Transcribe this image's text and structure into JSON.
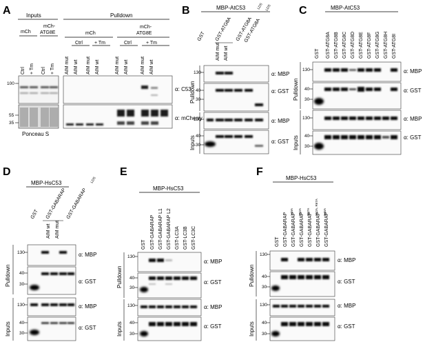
{
  "panels": [
    {
      "id": "A",
      "letter": "A",
      "headers": [
        {
          "text": "Inputs",
          "x": 50,
          "y": 25
        },
        {
          "text": "Pulldown",
          "x": 175,
          "y": 25
        }
      ],
      "groups": [
        {
          "text": "mCh",
          "x": 30,
          "y": 48
        },
        {
          "text": "mCh-",
          "x": 69,
          "y": 40
        },
        {
          "text": "ATG8E",
          "x": 69,
          "y": 49
        },
        {
          "text": "mCh",
          "x": 118,
          "y": 48
        },
        {
          "text": "mCh-",
          "x": 219,
          "y": 40
        },
        {
          "text": "ATG8E",
          "x": 219,
          "y": 49
        }
      ],
      "conditions": [
        "Ctrl",
        "+ Tm",
        "Ctrl",
        "+ Tm",
        "Ctrl",
        "+ Tm",
        "Ctrl",
        "+ Tm"
      ],
      "lanes": [
        "Ctrl",
        "+ Tm",
        "Ctrl",
        "+ Tm",
        "AIM mut",
        "AIM wt",
        "AIM mut",
        "AIM wt",
        "AIM mut",
        "AIM wt",
        "AIM mut",
        "AIM wt"
      ],
      "blots": [
        {
          "label": "α: C53",
          "mw": [
            "100"
          ]
        },
        {
          "label": "α: mCherry",
          "mw": [
            "55",
            "35"
          ]
        }
      ],
      "footer": "Ponceau S"
    },
    {
      "id": "B",
      "letter": "B",
      "header": "MBP-AtC53",
      "lanes": [
        "GST",
        "GST-ATG8A",
        "AIM mut",
        "AIM wt",
        "GST-ATG8A",
        "LDS",
        "GST-ATG8A",
        "LDS"
      ],
      "blots": [
        {
          "label": "α: MBP",
          "mw": [
            "130"
          ]
        },
        {
          "label": "α: GST",
          "mw": [
            "40",
            "30"
          ]
        },
        {
          "label": "α: MBP",
          "mw": [
            "130"
          ]
        },
        {
          "label": "α: GST",
          "mw": [
            "40",
            "30"
          ]
        }
      ],
      "sections": [
        "Pulldown",
        "Inputs"
      ]
    },
    {
      "id": "C",
      "letter": "C",
      "header": "MBP-AtC53",
      "lanes": [
        "GST",
        "GST-ATG8A",
        "GST-ATG8B",
        "GST-ATG8C",
        "GST-ATG8D",
        "GST-ATG8E",
        "GST-ATG8F",
        "GST-ATG8G",
        "GST-ATG8H",
        "GST-ATG8I"
      ],
      "blots": [
        {
          "label": "α: MBP",
          "mw": [
            "130"
          ]
        },
        {
          "label": "α: GST",
          "mw": [
            "40",
            "30"
          ]
        },
        {
          "label": "α: MBP",
          "mw": [
            "130"
          ]
        },
        {
          "label": "α: GST",
          "mw": [
            "40",
            "30"
          ]
        }
      ],
      "sections": [
        "Pulldown",
        "Inputs"
      ]
    },
    {
      "id": "D",
      "letter": "D",
      "header": "MBP-HsC53",
      "lanes": [
        "GST",
        "GST-GABARAP",
        "AIM wt",
        "AIM mut",
        "GST-GABARAP",
        "LDS"
      ],
      "blots": [
        {
          "label": "α: MBP",
          "mw": [
            "130"
          ]
        },
        {
          "label": "α: GST",
          "mw": [
            "40",
            "30"
          ]
        },
        {
          "label": "α: MBP",
          "mw": [
            "130"
          ]
        },
        {
          "label": "α: GST",
          "mw": [
            "40",
            "30"
          ]
        }
      ],
      "sections": [
        "Pulldown",
        "Inputs"
      ]
    },
    {
      "id": "E",
      "letter": "E",
      "header": "MBP-HsC53",
      "lanes": [
        "GST",
        "GST-GABARAP",
        "GST-GABARAP L1",
        "GST-GABARAP L2",
        "GST-LC3A",
        "GST-LC3B",
        "GST-LC3C"
      ],
      "blots": [
        {
          "label": "α: MBP",
          "mw": [
            "130"
          ]
        },
        {
          "label": "α: GST",
          "mw": [
            "40",
            "30"
          ]
        },
        {
          "label": "α: MBP",
          "mw": [
            "130"
          ]
        },
        {
          "label": "α: GST",
          "mw": [
            "40",
            "30"
          ]
        }
      ],
      "sections": [
        "Pulldown",
        "Inputs"
      ]
    },
    {
      "id": "F",
      "letter": "F",
      "header": "MBP-HsC53",
      "lanes": [
        "GST",
        "GST-GABARAP",
        "GST-GABARAP",
        "GST-GABARAP",
        "GST-GABARAP",
        "GST-GABARAP",
        "GST-GABARAP"
      ],
      "superscripts": [
        "",
        "",
        "Y49A",
        "P52A",
        "R67A",
        "P52A, R67A",
        "K46A"
      ],
      "blots": [
        {
          "label": "α: MBP",
          "mw": [
            "130"
          ]
        },
        {
          "label": "α: GST",
          "mw": [
            "40",
            "30"
          ]
        },
        {
          "label": "α: MBP",
          "mw": [
            "130"
          ]
        },
        {
          "label": "α: GST",
          "mw": [
            "40",
            "30"
          ]
        }
      ],
      "sections": [
        "Pulldown",
        "Inputs"
      ]
    }
  ]
}
